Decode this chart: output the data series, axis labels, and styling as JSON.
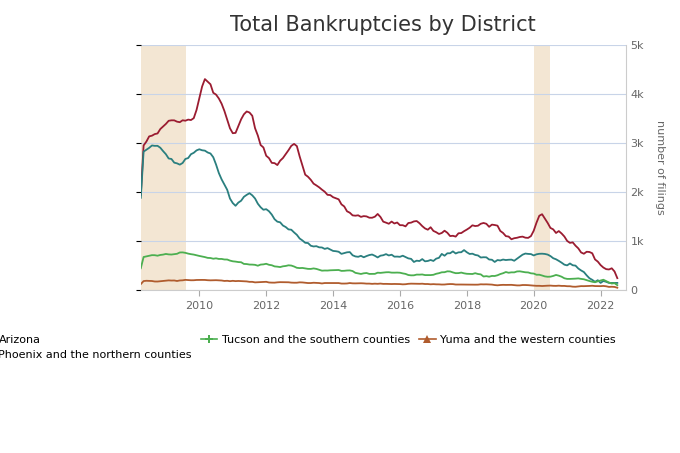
{
  "title": "Total Bankruptcies by District",
  "ylabel": "number of filings",
  "ylim": [
    0,
    5000
  ],
  "yticks": [
    0,
    1000,
    2000,
    3000,
    4000,
    5000
  ],
  "ytick_labels": [
    "0",
    "1k",
    "2k",
    "3k",
    "4k",
    "5k"
  ],
  "xticks": [
    2010,
    2012,
    2014,
    2016,
    2018,
    2020,
    2022
  ],
  "xlim": [
    2008.25,
    2022.75
  ],
  "colors": {
    "arizona": "#9b1c31",
    "phoenix": "#2a7f7f",
    "tucson": "#4caf50",
    "yuma": "#b05c2e"
  },
  "shading": [
    {
      "start": 2008.25,
      "end": 2009.6,
      "color": "#f0e0c8",
      "alpha": 0.8
    },
    {
      "start": 2020.0,
      "end": 2020.5,
      "color": "#f0e0c8",
      "alpha": 0.8
    }
  ],
  "background_color": "#ffffff",
  "plot_background_color": "#ffffff",
  "grid_color": "#c8d4e8",
  "title_fontsize": 15,
  "axis_label_fontsize": 8,
  "tick_label_fontsize": 8
}
